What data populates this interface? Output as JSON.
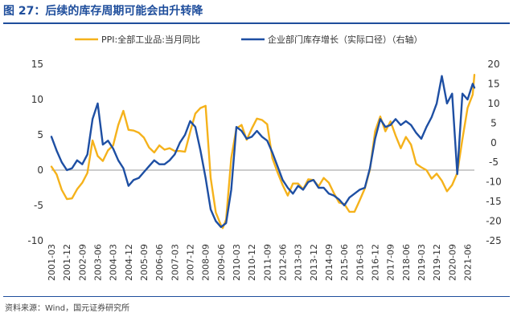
{
  "figure": {
    "title": "图 27：后续的库存周期可能会由升转降",
    "source": "资料来源：Wind，国元证券研究所"
  },
  "colors": {
    "ppi": "#f5b21b",
    "inventory": "#1e4fa3",
    "axis": "#999999",
    "title": "#1f4e9c"
  },
  "chart_data": {
    "type": "line",
    "legend_position": "top",
    "series": [
      {
        "name": "PPI:全部工业品:当月同比",
        "axis": "left",
        "color": "#f5b21b",
        "points": [
          [
            "2001-03",
            0.5
          ],
          [
            "2001-06",
            -0.6
          ],
          [
            "2001-09",
            -2.8
          ],
          [
            "2001-12",
            -4.1
          ],
          [
            "2002-03",
            -4.0
          ],
          [
            "2002-06",
            -2.7
          ],
          [
            "2002-09",
            -1.8
          ],
          [
            "2002-12",
            -0.4
          ],
          [
            "2003-03",
            4.2
          ],
          [
            "2003-06",
            2.0
          ],
          [
            "2003-09",
            1.3
          ],
          [
            "2003-12",
            2.8
          ],
          [
            "2004-03",
            3.5
          ],
          [
            "2004-06",
            6.4
          ],
          [
            "2004-09",
            8.4
          ],
          [
            "2004-12",
            5.7
          ],
          [
            "2005-03",
            5.6
          ],
          [
            "2005-06",
            5.3
          ],
          [
            "2005-09",
            4.6
          ],
          [
            "2005-12",
            3.2
          ],
          [
            "2006-03",
            2.5
          ],
          [
            "2006-06",
            3.5
          ],
          [
            "2006-09",
            2.9
          ],
          [
            "2006-12",
            3.1
          ],
          [
            "2007-03",
            2.7
          ],
          [
            "2007-06",
            2.7
          ],
          [
            "2007-09",
            2.6
          ],
          [
            "2007-12",
            5.4
          ],
          [
            "2008-03",
            8.0
          ],
          [
            "2008-06",
            8.8
          ],
          [
            "2008-09",
            9.1
          ],
          [
            "2008-12",
            -1.1
          ],
          [
            "2009-03",
            -6.0
          ],
          [
            "2009-06",
            -7.8
          ],
          [
            "2009-07",
            -8.2
          ],
          [
            "2009-09",
            -7.0
          ],
          [
            "2009-12",
            1.7
          ],
          [
            "2010-03",
            5.9
          ],
          [
            "2010-06",
            6.4
          ],
          [
            "2010-09",
            4.3
          ],
          [
            "2010-12",
            5.9
          ],
          [
            "2011-03",
            7.3
          ],
          [
            "2011-06",
            7.1
          ],
          [
            "2011-09",
            6.5
          ],
          [
            "2011-12",
            1.7
          ],
          [
            "2012-03",
            -0.3
          ],
          [
            "2012-06",
            -2.1
          ],
          [
            "2012-09",
            -3.6
          ],
          [
            "2012-12",
            -1.9
          ],
          [
            "2013-03",
            -1.9
          ],
          [
            "2013-06",
            -2.7
          ],
          [
            "2013-09",
            -1.3
          ],
          [
            "2013-12",
            -1.4
          ],
          [
            "2014-03",
            -2.3
          ],
          [
            "2014-06",
            -1.1
          ],
          [
            "2014-09",
            -1.8
          ],
          [
            "2014-12",
            -3.3
          ],
          [
            "2015-03",
            -4.6
          ],
          [
            "2015-06",
            -4.8
          ],
          [
            "2015-09",
            -5.9
          ],
          [
            "2015-12",
            -5.9
          ],
          [
            "2016-03",
            -4.3
          ],
          [
            "2016-06",
            -2.6
          ],
          [
            "2016-09",
            0.1
          ],
          [
            "2016-12",
            5.5
          ],
          [
            "2017-03",
            7.6
          ],
          [
            "2017-06",
            5.5
          ],
          [
            "2017-09",
            6.9
          ],
          [
            "2017-12",
            4.9
          ],
          [
            "2018-03",
            3.1
          ],
          [
            "2018-06",
            4.7
          ],
          [
            "2018-09",
            3.6
          ],
          [
            "2018-12",
            0.9
          ],
          [
            "2019-03",
            0.4
          ],
          [
            "2019-06",
            0.0
          ],
          [
            "2019-09",
            -1.2
          ],
          [
            "2019-12",
            -0.5
          ],
          [
            "2020-03",
            -1.5
          ],
          [
            "2020-06",
            -3.0
          ],
          [
            "2020-09",
            -2.1
          ],
          [
            "2020-12",
            -0.4
          ],
          [
            "2021-03",
            4.4
          ],
          [
            "2021-06",
            8.8
          ],
          [
            "2021-09",
            10.7
          ],
          [
            "2021-10",
            13.5
          ]
        ]
      },
      {
        "name": "企业部门库存增长（实际口径）（右轴）",
        "axis": "right",
        "color": "#1e4fa3",
        "points": [
          [
            "2001-03",
            1.5
          ],
          [
            "2001-06",
            -2.0
          ],
          [
            "2001-09",
            -5.0
          ],
          [
            "2001-12",
            -7.0
          ],
          [
            "2002-03",
            -6.5
          ],
          [
            "2002-06",
            -4.5
          ],
          [
            "2002-09",
            -5.5
          ],
          [
            "2002-12",
            -3.0
          ],
          [
            "2003-03",
            6.0
          ],
          [
            "2003-06",
            10.0
          ],
          [
            "2003-09",
            -0.5
          ],
          [
            "2003-12",
            0.5
          ],
          [
            "2004-03",
            -1.5
          ],
          [
            "2004-06",
            -4.5
          ],
          [
            "2004-09",
            -6.5
          ],
          [
            "2004-12",
            -11.0
          ],
          [
            "2005-03",
            -9.5
          ],
          [
            "2005-06",
            -9.0
          ],
          [
            "2005-09",
            -7.5
          ],
          [
            "2005-12",
            -6.0
          ],
          [
            "2006-03",
            -4.5
          ],
          [
            "2006-06",
            -5.5
          ],
          [
            "2006-09",
            -5.5
          ],
          [
            "2006-12",
            -4.5
          ],
          [
            "2007-03",
            -3.0
          ],
          [
            "2007-06",
            0.0
          ],
          [
            "2007-09",
            2.0
          ],
          [
            "2007-12",
            5.5
          ],
          [
            "2008-03",
            4.0
          ],
          [
            "2008-06",
            -2.0
          ],
          [
            "2008-09",
            -9.0
          ],
          [
            "2008-12",
            -17.0
          ],
          [
            "2009-03",
            -20.0
          ],
          [
            "2009-06",
            -21.5
          ],
          [
            "2009-09",
            -20.5
          ],
          [
            "2009-12",
            -12.0
          ],
          [
            "2010-03",
            4.0
          ],
          [
            "2010-06",
            3.0
          ],
          [
            "2010-09",
            1.0
          ],
          [
            "2010-12",
            1.5
          ],
          [
            "2011-03",
            3.0
          ],
          [
            "2011-06",
            1.5
          ],
          [
            "2011-09",
            0.5
          ],
          [
            "2011-12",
            -2.5
          ],
          [
            "2012-03",
            -6.0
          ],
          [
            "2012-06",
            -9.5
          ],
          [
            "2012-09",
            -11.5
          ],
          [
            "2012-12",
            -13.0
          ],
          [
            "2013-03",
            -11.0
          ],
          [
            "2013-06",
            -12.0
          ],
          [
            "2013-09",
            -10.0
          ],
          [
            "2013-12",
            -9.5
          ],
          [
            "2014-03",
            -11.5
          ],
          [
            "2014-06",
            -11.5
          ],
          [
            "2014-09",
            -13.0
          ],
          [
            "2014-12",
            -13.5
          ],
          [
            "2015-03",
            -14.5
          ],
          [
            "2015-06",
            -16.0
          ],
          [
            "2015-09",
            -14.0
          ],
          [
            "2015-12",
            -13.0
          ],
          [
            "2016-03",
            -12.0
          ],
          [
            "2016-06",
            -11.5
          ],
          [
            "2016-09",
            -6.5
          ],
          [
            "2016-12",
            1.0
          ],
          [
            "2017-03",
            6.0
          ],
          [
            "2017-06",
            4.0
          ],
          [
            "2017-09",
            4.5
          ],
          [
            "2017-12",
            6.0
          ],
          [
            "2018-03",
            4.5
          ],
          [
            "2018-06",
            5.5
          ],
          [
            "2018-09",
            4.5
          ],
          [
            "2018-12",
            2.5
          ],
          [
            "2019-03",
            1.0
          ],
          [
            "2019-06",
            4.0
          ],
          [
            "2019-09",
            6.5
          ],
          [
            "2019-12",
            10.0
          ],
          [
            "2020-03",
            17.0
          ],
          [
            "2020-06",
            10.0
          ],
          [
            "2020-09",
            12.5
          ],
          [
            "2020-12",
            -8.0
          ],
          [
            "2021-03",
            12.5
          ],
          [
            "2021-06",
            11.0
          ],
          [
            "2021-09",
            15.0
          ],
          [
            "2021-10",
            14.0
          ]
        ]
      }
    ],
    "x_tick_labels": [
      "2001-03",
      "2001-12",
      "2002-09",
      "2003-06",
      "2004-03",
      "2004-12",
      "2005-09",
      "2006-06",
      "2007-03",
      "2007-12",
      "2008-09",
      "2009-06",
      "2010-03",
      "2010-12",
      "2011-09",
      "2012-06",
      "2013-03",
      "2013-12",
      "2014-09",
      "2015-06",
      "2016-03",
      "2016-12",
      "2017-09",
      "2018-06",
      "2019-03",
      "2019-12",
      "2020-09",
      "2021-06"
    ],
    "x_range": [
      "2001-03",
      "2021-10"
    ],
    "y_left": {
      "min": -10,
      "max": 15,
      "ticks": [
        "-10",
        "-5",
        "0",
        "5",
        "10",
        "15"
      ]
    },
    "y_right": {
      "min": -25,
      "max": 20,
      "ticks": [
        "-25",
        "-20",
        "-15",
        "-10",
        "-5",
        "0",
        "5",
        "10",
        "15",
        "20"
      ]
    }
  }
}
